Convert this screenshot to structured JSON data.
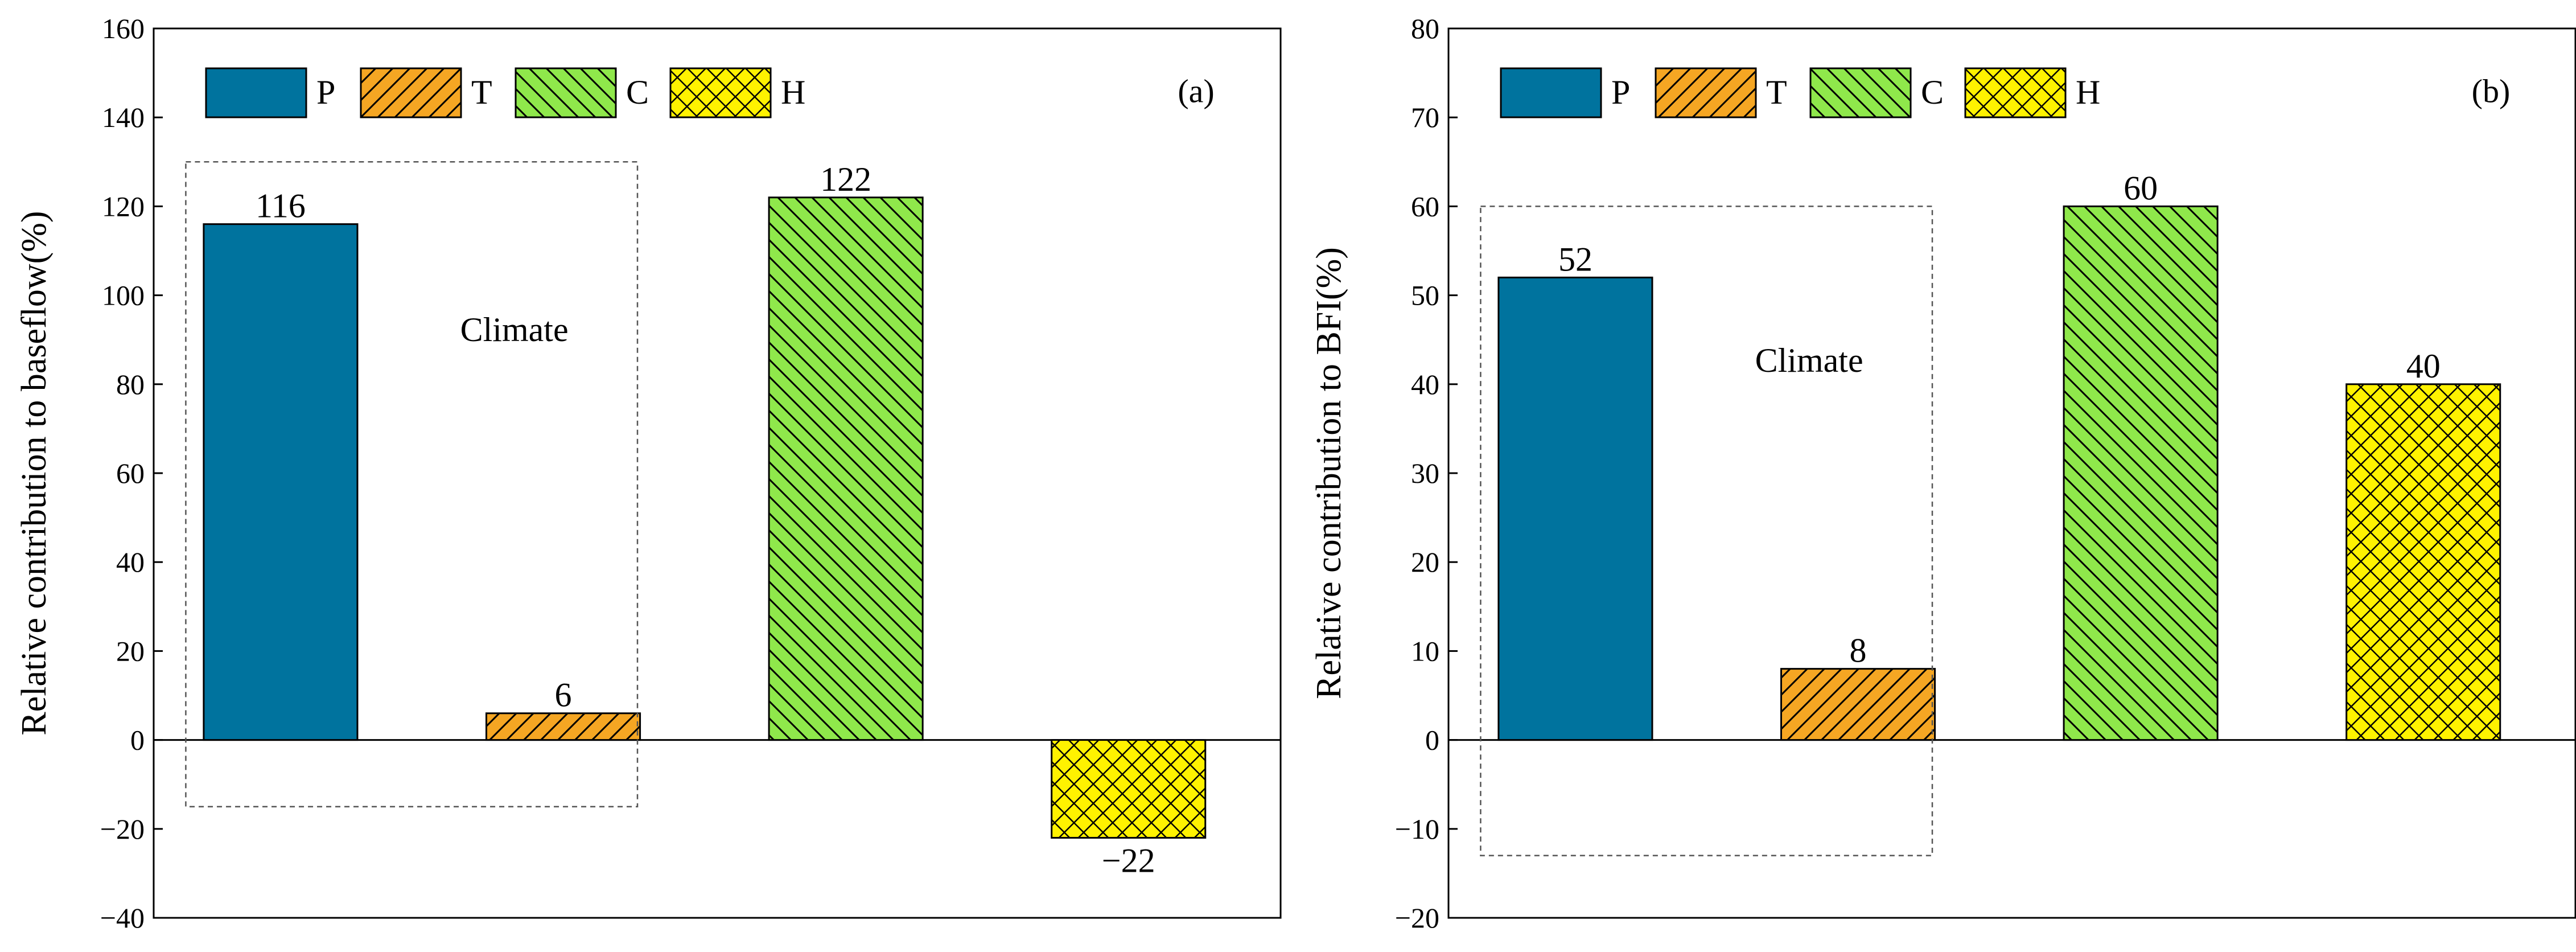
{
  "chart_data": [
    {
      "type": "bar",
      "panel_label": "(a)",
      "categories": [
        "P",
        "T",
        "C",
        "H"
      ],
      "values": [
        116,
        6,
        122,
        -22
      ],
      "value_labels": [
        "116",
        "6",
        "122",
        "−22"
      ],
      "ylabel": "Relative contribution to baseflow(%)",
      "ylim": [
        -40,
        160
      ],
      "yticks": [
        -40,
        -20,
        0,
        20,
        40,
        60,
        80,
        100,
        120,
        140,
        160
      ],
      "ytick_labels": [
        "−40",
        "−20",
        "0",
        "20",
        "40",
        "60",
        "80",
        "100",
        "120",
        "140",
        "160"
      ],
      "annotation": "Climate",
      "climate_box_range": [
        -15,
        130
      ],
      "legend": [
        "P",
        "T",
        "C",
        "H"
      ],
      "legend_position": "top-left"
    },
    {
      "type": "bar",
      "panel_label": "(b)",
      "categories": [
        "P",
        "T",
        "C",
        "H"
      ],
      "values": [
        52,
        8,
        60,
        40
      ],
      "value_labels": [
        "52",
        "8",
        "60",
        "40"
      ],
      "ylabel": "Relative contribution to BFI(%)",
      "ylim": [
        -20,
        80
      ],
      "yticks": [
        -20,
        -10,
        0,
        10,
        20,
        30,
        40,
        50,
        60,
        70,
        80
      ],
      "ytick_labels": [
        "−20",
        "−10",
        "0",
        "10",
        "20",
        "30",
        "40",
        "50",
        "60",
        "70",
        "80"
      ],
      "annotation": "Climate",
      "climate_box_range": [
        -13,
        60
      ],
      "legend": [
        "P",
        "T",
        "C",
        "H"
      ],
      "legend_position": "top-left"
    }
  ],
  "series_colors": {
    "P": "#00739E",
    "T": "#F5A623",
    "C": "#8FE84B",
    "H": "#FFF200"
  },
  "series_patterns": {
    "P": "solid-icon",
    "T": "forward-hatch-icon",
    "C": "back-hatch-icon",
    "H": "cross-hatch-icon"
  }
}
